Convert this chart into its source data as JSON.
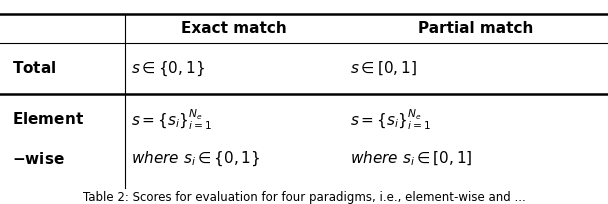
{
  "figsize": [
    6.08,
    2.04
  ],
  "dpi": 100,
  "background": "#ffffff",
  "text_color": "#000000",
  "line_color": "#000000",
  "col_headers": [
    "Exact match",
    "Partial match"
  ],
  "caption": "Table 2: Scores for evaluation for four paradigms, i.e., element-wise and ...",
  "header_fontsize": 11,
  "body_fontsize": 11,
  "caption_fontsize": 8.5,
  "thick_lw": 1.8,
  "thin_lw": 0.8
}
